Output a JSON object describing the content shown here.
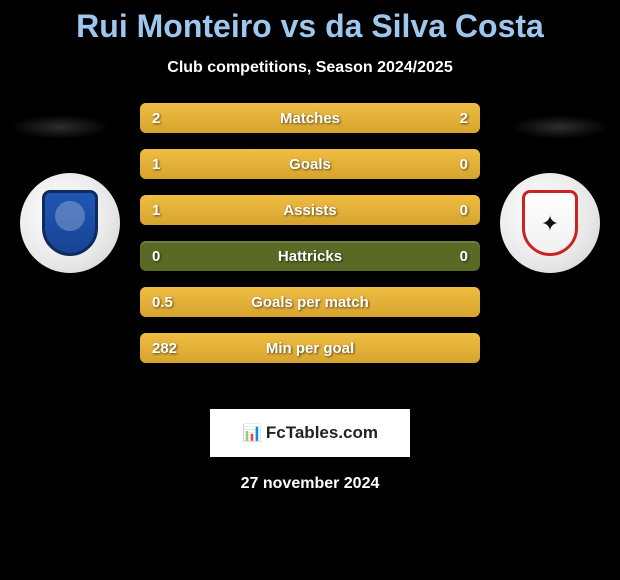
{
  "title": "Rui Monteiro vs da Silva Costa",
  "subtitle": "Club competitions, Season 2024/2025",
  "footer_brand": "FcTables.com",
  "footer_date": "27 november 2024",
  "colors": {
    "title": "#9ec7f0",
    "bar_track": "#5a6a24",
    "bar_fill": "#e8b33a",
    "text_white": "#ffffff",
    "background": "#000000"
  },
  "rows": [
    {
      "label": "Matches",
      "left_val": "2",
      "right_val": "2",
      "left_pct": 50,
      "right_pct": 50
    },
    {
      "label": "Goals",
      "left_val": "1",
      "right_val": "0",
      "left_pct": 78,
      "right_pct": 22
    },
    {
      "label": "Assists",
      "left_val": "1",
      "right_val": "0",
      "left_pct": 78,
      "right_pct": 22
    },
    {
      "label": "Hattricks",
      "left_val": "0",
      "right_val": "0",
      "left_pct": 0,
      "right_pct": 0
    },
    {
      "label": "Goals per match",
      "left_val": "0.5",
      "right_val": "",
      "left_pct": 100,
      "right_pct": 0
    },
    {
      "label": "Min per goal",
      "left_val": "282",
      "right_val": "",
      "left_pct": 100,
      "right_pct": 0
    }
  ]
}
